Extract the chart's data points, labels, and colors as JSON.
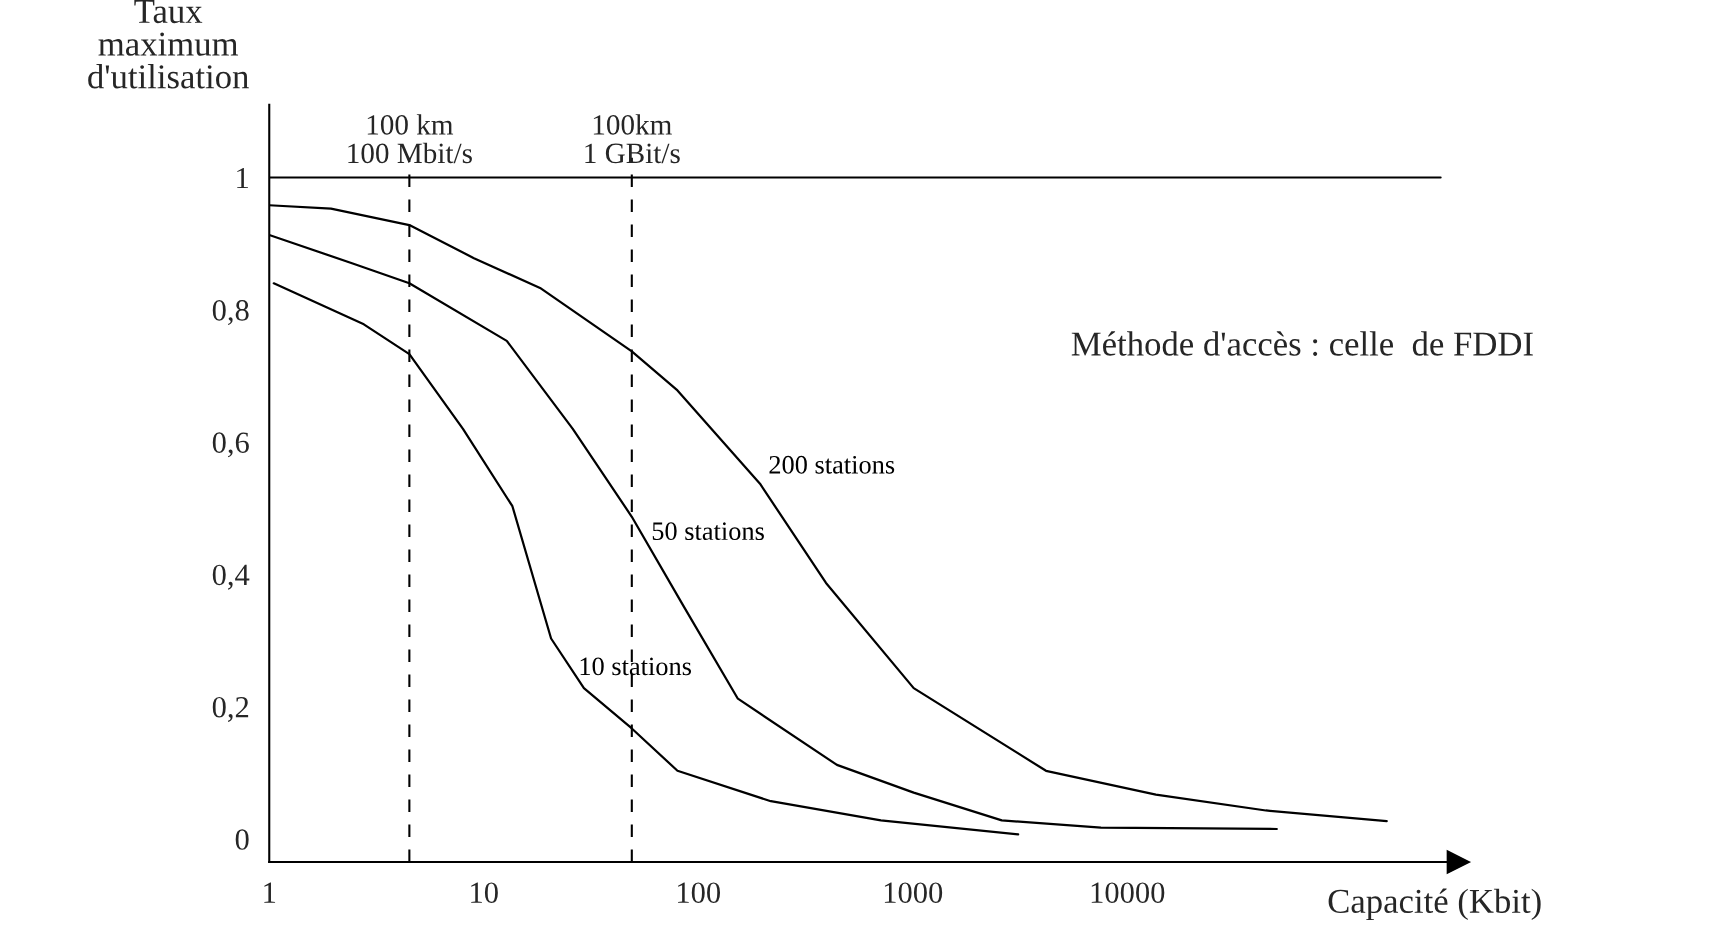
{
  "chart_data": {
    "type": "line",
    "ylabel": "Taux\nmaximum\nd'utilisation",
    "xlabel": "Capacité (Kbit)",
    "log": "x",
    "xlim": [
      1,
      350000
    ],
    "xticks": [
      1,
      10,
      100,
      1000,
      10000
    ],
    "ylim": [
      -0.035,
      1.11
    ],
    "yticks": [
      {
        "value": 0,
        "label": "0"
      },
      {
        "value": 0.2,
        "label": "0,2"
      },
      {
        "value": 0.4,
        "label": "0,4"
      },
      {
        "value": 0.6,
        "label": "0,6"
      },
      {
        "value": 0.8,
        "label": "0,8"
      },
      {
        "value": 1,
        "label": "1"
      }
    ],
    "grid": false,
    "legend": false,
    "marker": "none",
    "line_style": "solid",
    "series": [
      {
        "name": "200 stations",
        "color": "#000000",
        "x": [
          1,
          1.94,
          4.5,
          9.0,
          18.3,
          49,
          80,
          194,
          394,
          1010,
          4180,
          13600,
          44300,
          162000
        ],
        "values": [
          0.958,
          0.953,
          0.928,
          0.878,
          0.833,
          0.737,
          0.678,
          0.537,
          0.387,
          0.228,
          0.103,
          0.067,
          0.043,
          0.027
        ]
      },
      {
        "name": "50 stations",
        "color": "#000000",
        "x": [
          1,
          2.45,
          4.5,
          12.8,
          26,
          49,
          85,
          153,
          443,
          1010,
          2600,
          7540,
          49800
        ],
        "values": [
          0.913,
          0.87,
          0.84,
          0.753,
          0.62,
          0.487,
          0.353,
          0.212,
          0.112,
          0.07,
          0.028,
          0.017,
          0.015
        ]
      },
      {
        "name": "10 stations",
        "color": "#000000",
        "x": [
          1.05,
          2.76,
          4.5,
          8.0,
          13.6,
          20.6,
          29.3,
          49,
          80,
          218,
          710,
          3100
        ],
        "values": [
          0.84,
          0.778,
          0.733,
          0.62,
          0.503,
          0.303,
          0.228,
          0.167,
          0.103,
          0.057,
          0.028,
          0.007
        ]
      }
    ],
    "ref_lines": [
      {
        "axis": "y",
        "value": 1,
        "color": "#000000",
        "line_style": "solid"
      },
      {
        "axis": "x",
        "value": 4.5,
        "label": "100 km\n100 Mbit/s",
        "color": "#000000",
        "line_style": "dashed"
      },
      {
        "axis": "x",
        "value": 49,
        "label": "100km\n1 GBit/s",
        "color": "#000000",
        "line_style": "dashed"
      }
    ],
    "annotations": [
      "Méthode d'accès : celle  de FDDI"
    ]
  }
}
